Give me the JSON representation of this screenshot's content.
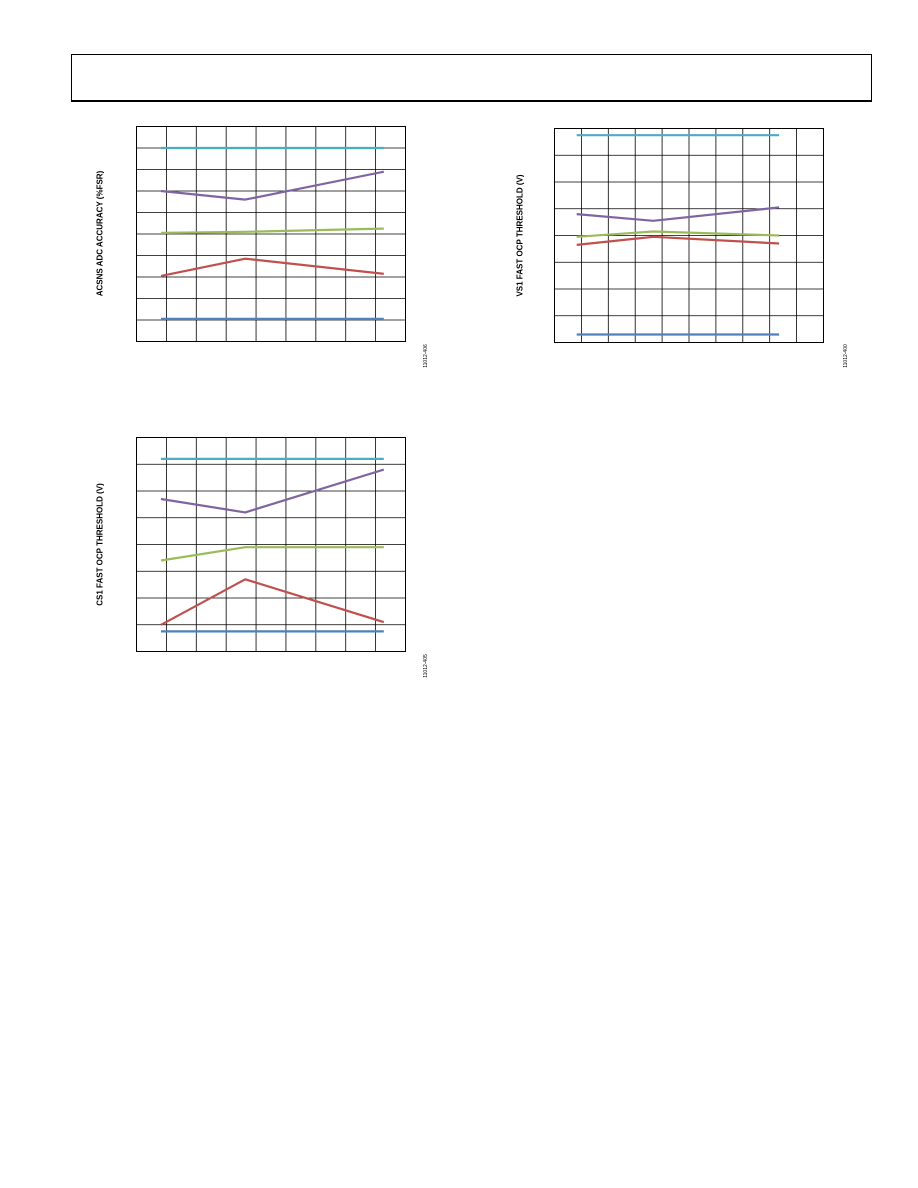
{
  "page": {
    "header_text": ""
  },
  "chart_data": [
    {
      "id": "acsns",
      "type": "line",
      "ylabel": "ACSNS ADC ACCURACY (%FSR)",
      "figure_id": "11012-406",
      "grid": true,
      "x_divisions": 9,
      "y_divisions": 10,
      "x": [
        0,
        3.1,
        8.2
      ],
      "xlim": [
        -0.9,
        9
      ],
      "ylim": [
        0,
        10
      ],
      "series": [
        {
          "color": "#4bacc6",
          "values": [
            9,
            9,
            9
          ]
        },
        {
          "color": "#8064a2",
          "values": [
            7,
            6.6,
            7.9
          ]
        },
        {
          "color": "#9bbb59",
          "values": [
            5.05,
            5.1,
            5.25
          ]
        },
        {
          "color": "#c0504d",
          "values": [
            3.05,
            3.85,
            3.15
          ]
        },
        {
          "color": "#4f81bd",
          "values": [
            1.05,
            1.05,
            1.05
          ]
        }
      ]
    },
    {
      "id": "vs1",
      "type": "line",
      "ylabel": "VS1 FAST OCP THRESHOLD (V)",
      "figure_id": "11012-400",
      "grid": true,
      "x_divisions": 10,
      "y_divisions": 8,
      "x": [
        0,
        3.1,
        8.2
      ],
      "xlim": [
        -0.9,
        10
      ],
      "ylim": [
        0,
        8
      ],
      "series": [
        {
          "color": "#4bacc6",
          "values": [
            7.75,
            7.75,
            7.75
          ]
        },
        {
          "color": "#8064a2",
          "values": [
            4.8,
            4.55,
            5.05
          ]
        },
        {
          "color": "#9bbb59",
          "values": [
            3.95,
            4.15,
            4.0
          ]
        },
        {
          "color": "#c0504d",
          "values": [
            3.65,
            3.95,
            3.7
          ]
        },
        {
          "color": "#4f81bd",
          "values": [
            0.3,
            0.3,
            0.3
          ]
        }
      ]
    },
    {
      "id": "cs1",
      "type": "line",
      "ylabel": "CS1 FAST OCP THRESHOLD (V)",
      "figure_id": "11012-405",
      "grid": true,
      "x_divisions": 9,
      "y_divisions": 8,
      "x": [
        0,
        3.1,
        8.2
      ],
      "xlim": [
        -0.9,
        9
      ],
      "ylim": [
        0,
        8
      ],
      "series": [
        {
          "color": "#4bacc6",
          "values": [
            7.2,
            7.2,
            7.2
          ]
        },
        {
          "color": "#8064a2",
          "values": [
            5.7,
            5.2,
            6.8
          ]
        },
        {
          "color": "#9bbb59",
          "values": [
            3.4,
            3.9,
            3.9
          ]
        },
        {
          "color": "#c0504d",
          "values": [
            1.0,
            2.7,
            1.1
          ]
        },
        {
          "color": "#4f81bd",
          "values": [
            0.75,
            0.75,
            0.75
          ]
        }
      ]
    }
  ]
}
